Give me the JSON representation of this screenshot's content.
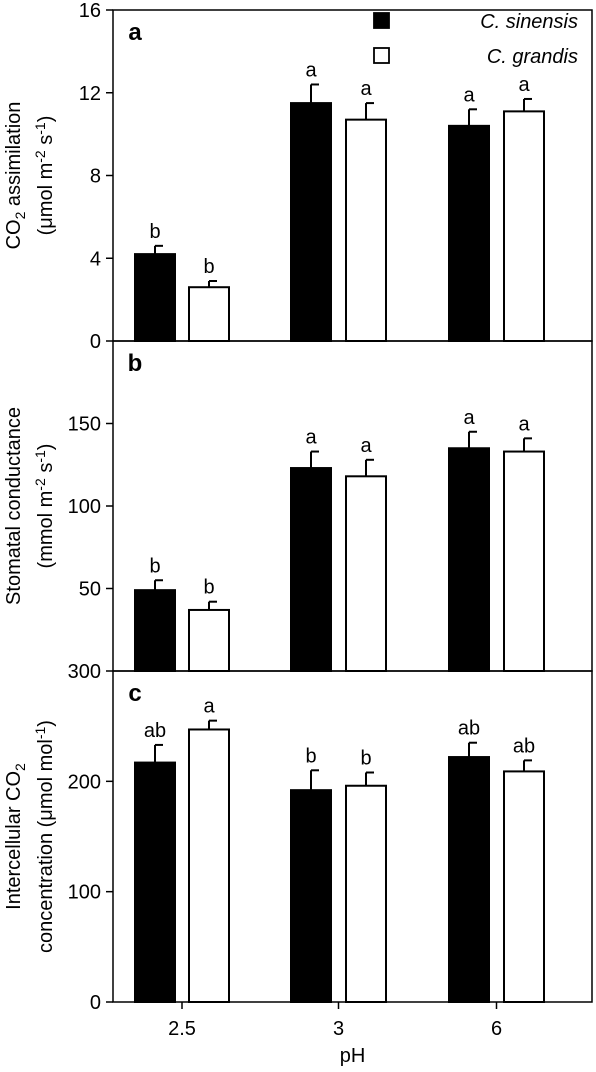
{
  "legend": {
    "entries": [
      {
        "label": "C. sinensis",
        "color": "#000000"
      },
      {
        "label": "C. grandis",
        "color": "#ffffff"
      }
    ],
    "placement": "top-right of panel a"
  },
  "chart_data": [
    {
      "type": "bar",
      "panel_label": "a",
      "ylabel_line1": "CO2 assimilation",
      "ylabel_line2": "(μmol m-2 s-1)",
      "ylim": [
        0,
        16
      ],
      "yticks": [
        "0",
        "4",
        "8",
        "12",
        "16"
      ],
      "categories": [
        "2.5",
        "3",
        "6"
      ],
      "series": [
        {
          "name": "C. sinensis",
          "color": "#000000",
          "values": [
            4.2,
            11.5,
            10.4
          ],
          "errors": [
            0.4,
            0.9,
            0.8
          ],
          "letters": [
            "b",
            "a",
            "a"
          ]
        },
        {
          "name": "C. grandis",
          "color": "#ffffff",
          "values": [
            2.6,
            10.7,
            11.1
          ],
          "errors": [
            0.3,
            0.8,
            0.6
          ],
          "letters": [
            "b",
            "a",
            "a"
          ]
        }
      ],
      "grid": false
    },
    {
      "type": "bar",
      "panel_label": "b",
      "ylabel_line1": "Stomatal conductance",
      "ylabel_line2": "(mmol m-2 s-1)",
      "ylim": [
        0,
        200
      ],
      "yticks": [
        "50",
        "100",
        "150"
      ],
      "categories": [
        "2.5",
        "3",
        "6"
      ],
      "series": [
        {
          "name": "C. sinensis",
          "color": "#000000",
          "values": [
            49,
            123,
            135
          ],
          "errors": [
            6,
            10,
            10
          ],
          "letters": [
            "b",
            "a",
            "a"
          ]
        },
        {
          "name": "C. grandis",
          "color": "#ffffff",
          "values": [
            37,
            118,
            133
          ],
          "errors": [
            5,
            10,
            8
          ],
          "letters": [
            "b",
            "a",
            "a"
          ]
        }
      ],
      "grid": false
    },
    {
      "type": "bar",
      "panel_label": "c",
      "ylabel_line1": "Intercellular CO2",
      "ylabel_line2": "concentration (μmol mol-1)",
      "ylim": [
        0,
        300
      ],
      "yticks": [
        "0",
        "100",
        "200",
        "300"
      ],
      "categories": [
        "2.5",
        "3",
        "6"
      ],
      "xlabel": "pH",
      "series": [
        {
          "name": "C. sinensis",
          "color": "#000000",
          "values": [
            217,
            192,
            222
          ],
          "errors": [
            16,
            18,
            13
          ],
          "letters": [
            "ab",
            "b",
            "ab"
          ]
        },
        {
          "name": "C. grandis",
          "color": "#ffffff",
          "values": [
            247,
            196,
            209
          ],
          "errors": [
            8,
            12,
            10
          ],
          "letters": [
            "a",
            "b",
            "ab"
          ]
        }
      ],
      "grid": false
    }
  ]
}
